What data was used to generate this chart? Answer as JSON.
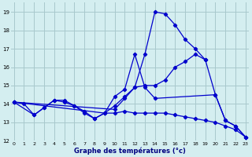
{
  "xlabel": "Graphe des températures (°c)",
  "background_color": "#d4eef0",
  "grid_color": "#a8c8cc",
  "line_color": "#0000cc",
  "ylim": [
    12.0,
    19.5
  ],
  "xlim": [
    -0.3,
    23.3
  ],
  "yticks": [
    12,
    13,
    14,
    15,
    16,
    17,
    18,
    19
  ],
  "xticks": [
    0,
    1,
    2,
    3,
    4,
    5,
    6,
    7,
    8,
    9,
    10,
    11,
    12,
    13,
    14,
    15,
    16,
    17,
    18,
    19,
    20,
    21,
    22,
    23
  ],
  "series1_x": [
    0,
    1,
    2,
    3,
    4,
    5,
    6,
    7,
    8,
    9,
    10,
    11,
    12,
    13,
    14,
    15,
    16,
    17,
    18,
    19,
    20,
    21,
    22,
    23
  ],
  "series1_y": [
    14.1,
    14.0,
    13.4,
    13.8,
    14.2,
    14.2,
    13.9,
    13.5,
    13.2,
    13.5,
    13.9,
    14.4,
    14.9,
    16.7,
    19.0,
    18.9,
    18.3,
    17.5,
    17.0,
    16.4,
    14.5,
    13.1,
    12.8,
    12.2
  ],
  "series2_x": [
    0,
    2,
    3,
    4,
    5,
    6,
    7,
    8,
    9,
    10,
    11,
    12,
    13,
    14,
    20,
    21,
    22,
    23
  ],
  "series2_y": [
    14.1,
    13.4,
    13.8,
    14.2,
    14.1,
    13.9,
    13.6,
    13.2,
    13.5,
    14.4,
    14.8,
    16.7,
    14.9,
    14.3,
    14.5,
    13.1,
    12.8,
    12.2
  ],
  "series3_x": [
    0,
    10,
    11,
    12,
    13,
    14,
    15,
    16,
    17,
    18,
    19
  ],
  "series3_y": [
    14.1,
    13.7,
    14.3,
    14.9,
    15.0,
    15.0,
    15.3,
    16.0,
    16.3,
    16.7,
    16.4
  ],
  "series4_x": [
    0,
    9,
    10,
    11,
    12,
    13,
    14,
    15,
    16,
    17,
    18,
    19,
    20,
    21,
    22,
    23
  ],
  "series4_y": [
    14.1,
    13.5,
    13.5,
    13.6,
    13.5,
    13.5,
    13.5,
    13.5,
    13.4,
    13.3,
    13.2,
    13.1,
    13.0,
    12.8,
    12.6,
    12.2
  ]
}
